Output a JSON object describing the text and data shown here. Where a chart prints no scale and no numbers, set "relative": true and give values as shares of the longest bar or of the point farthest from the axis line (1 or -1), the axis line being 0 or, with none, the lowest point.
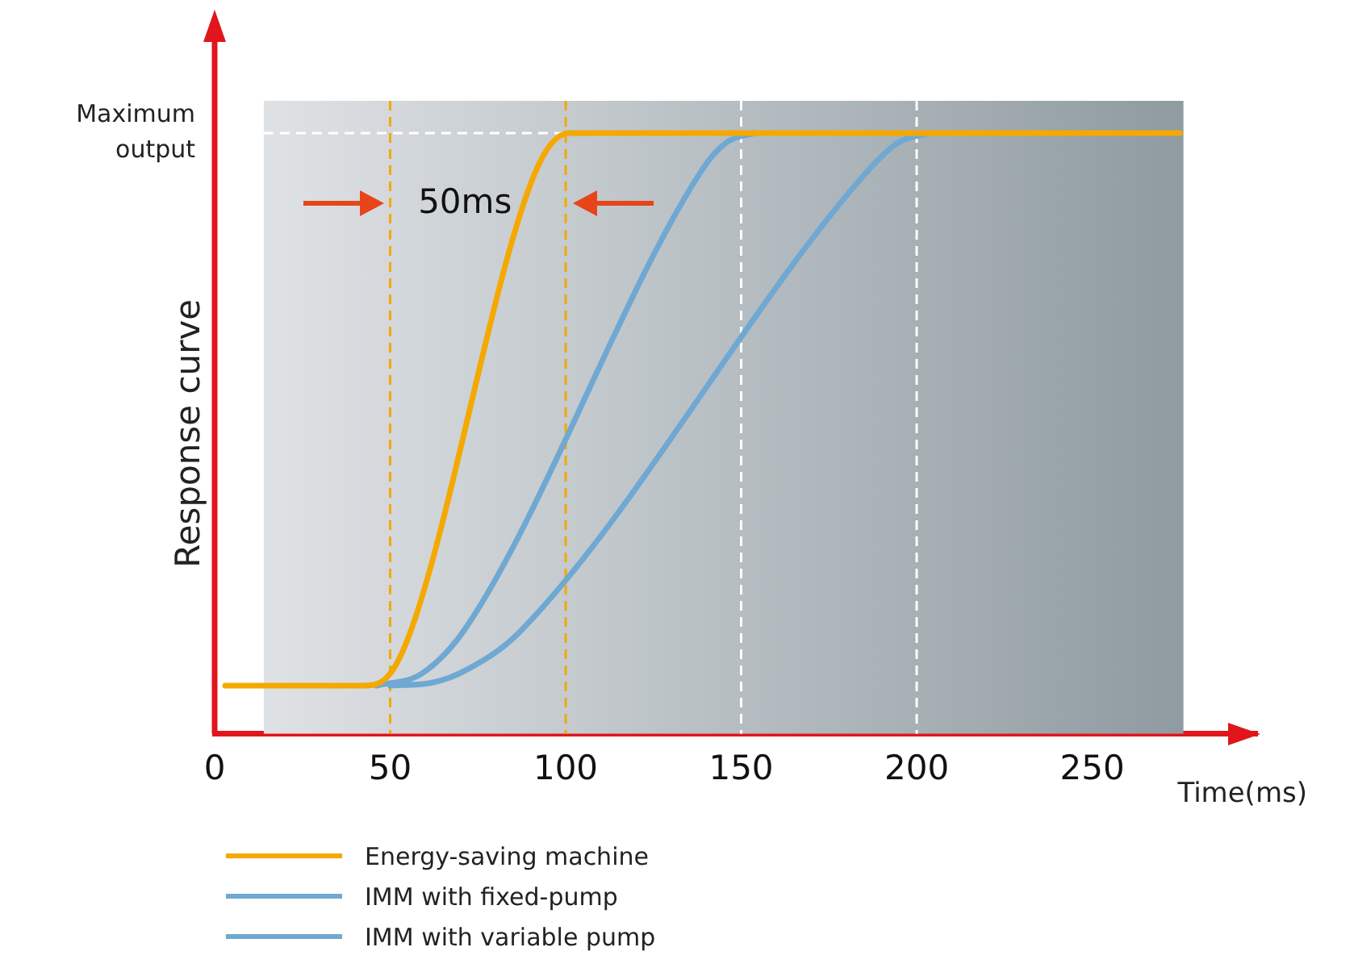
{
  "chart_data": {
    "type": "line",
    "relative": true,
    "xlabel": "Time(ms)",
    "ylabel": "Response curve",
    "xlim": [
      0,
      297
    ],
    "xticks": [
      0,
      50,
      100,
      150,
      200,
      250
    ],
    "grid": false,
    "legend": "bottom",
    "line_style": "solid",
    "series": [
      {
        "name": "Energy-saving machine",
        "color": "#f5a800",
        "x": [
          3,
          42,
          50,
          57,
          91,
          101,
          275
        ],
        "values": [
          0.08,
          0.08,
          0.1,
          0.19,
          0.93,
          1,
          1
        ]
      },
      {
        "name": "IMM with fixed-pump",
        "color": "#6fa8d2",
        "x": [
          46,
          59,
          72,
          139,
          146,
          154
        ],
        "values": [
          0.08,
          0.1,
          0.18,
          0.94,
          0.985,
          1
        ]
      },
      {
        "name": "IMM with variable pump",
        "color": "#6fa8d2",
        "x": [
          50,
          62,
          72,
          87,
          185,
          195,
          204
        ],
        "values": [
          0.08,
          0.085,
          0.107,
          0.17,
          0.93,
          0.985,
          1
        ]
      }
    ],
    "ref_lines": [
      {
        "axis": "y",
        "value": 1,
        "label": "Maximum output",
        "color": "#ffffff",
        "line_style": "dashed"
      },
      {
        "axis": "x",
        "value": 50,
        "color": "#f5a800",
        "line_style": "dashed"
      },
      {
        "axis": "x",
        "value": 100,
        "color": "#f5a800",
        "line_style": "dashed"
      },
      {
        "axis": "x",
        "value": 150,
        "color": "#ffffff",
        "line_style": "dashed"
      },
      {
        "axis": "x",
        "value": 200,
        "color": "#ffffff",
        "line_style": "dashed"
      }
    ],
    "bands": [
      {
        "axis": "x",
        "from": 14,
        "to": 276,
        "color": "#dfe2e5"
      }
    ],
    "annotations": [
      "50ms"
    ]
  }
}
